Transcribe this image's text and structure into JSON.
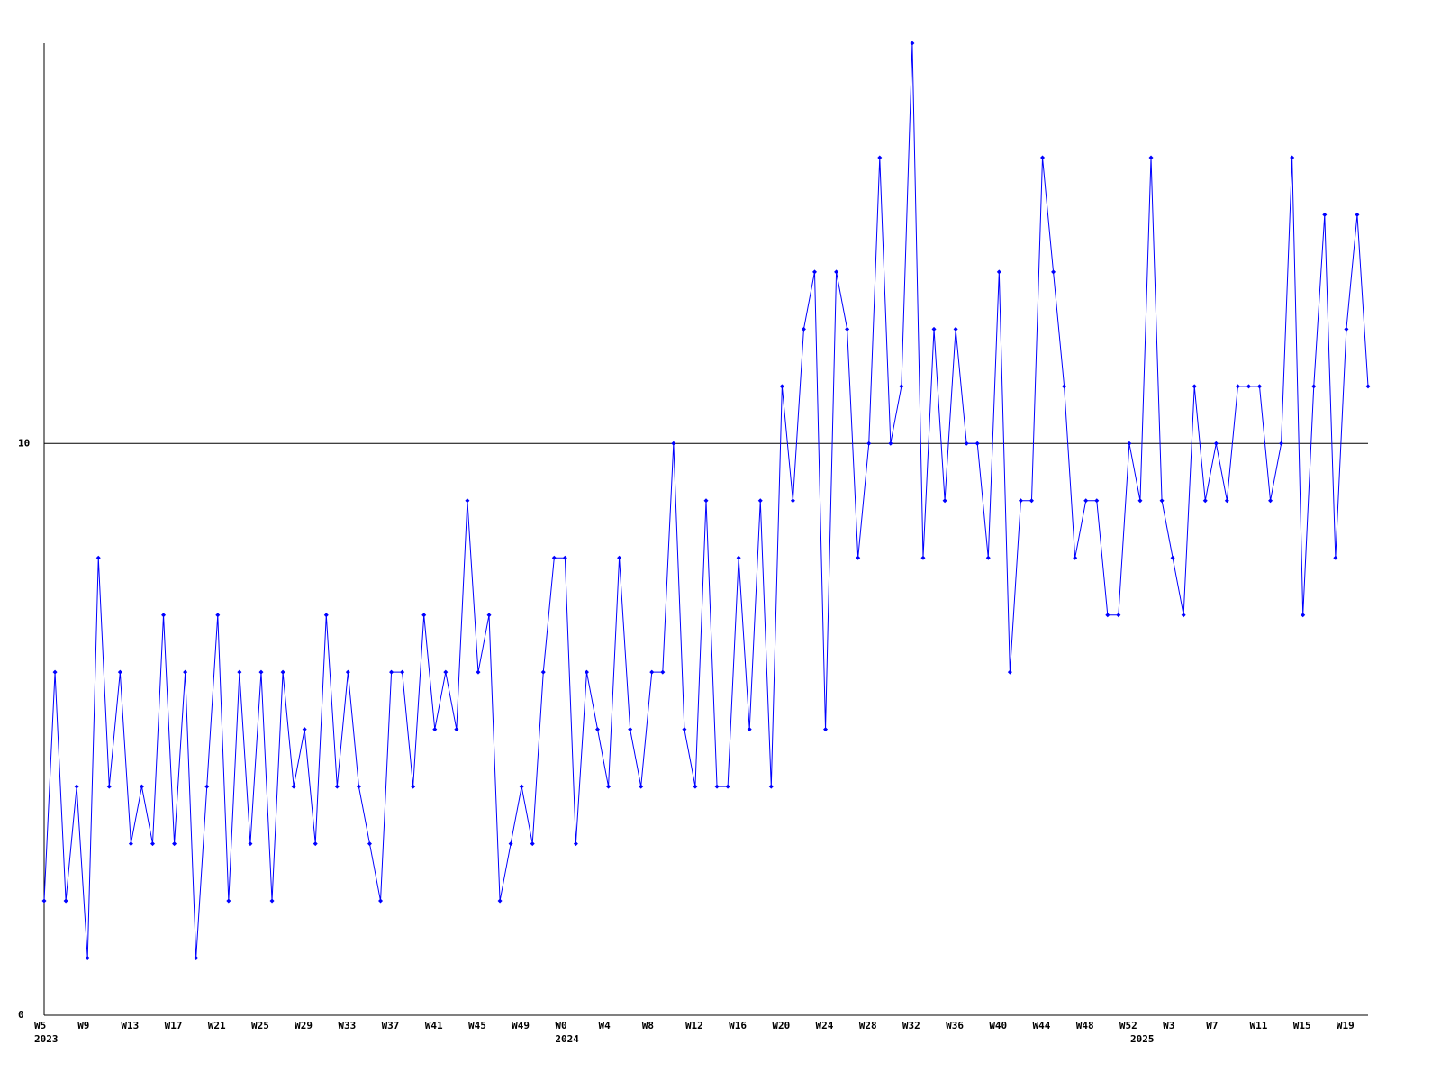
{
  "chart_data": {
    "type": "line",
    "categories": [
      "W5",
      null,
      null,
      null,
      "W9",
      null,
      null,
      null,
      "W13",
      null,
      null,
      null,
      "W17",
      null,
      null,
      null,
      "W21",
      null,
      null,
      null,
      "W25",
      null,
      null,
      null,
      "W29",
      null,
      null,
      null,
      "W33",
      null,
      null,
      null,
      "W37",
      null,
      null,
      null,
      "W41",
      null,
      null,
      null,
      "W45",
      null,
      null,
      null,
      "W49",
      null,
      null,
      null,
      "W0",
      null,
      null,
      null,
      "W4",
      null,
      null,
      null,
      "W8",
      null,
      null,
      null,
      "W12",
      null,
      null,
      null,
      "W16",
      null,
      null,
      null,
      "W20",
      null,
      null,
      null,
      "W24",
      null,
      null,
      null,
      "W28",
      null,
      null,
      null,
      "W32",
      null,
      null,
      null,
      "W36",
      null,
      null,
      null,
      "W40",
      null,
      null,
      null,
      "W44",
      null,
      null,
      null,
      "W48",
      null,
      null,
      null,
      "W52",
      null,
      null,
      null,
      "W3",
      null,
      null,
      null,
      "W7",
      null,
      null,
      null,
      "W11",
      null,
      null,
      null,
      "W15",
      null,
      null,
      null,
      "W19",
      null,
      null
    ],
    "years": [
      "2023",
      null,
      null,
      null,
      null,
      null,
      null,
      null,
      null,
      null,
      null,
      null,
      null,
      null,
      null,
      null,
      null,
      null,
      null,
      null,
      null,
      null,
      null,
      null,
      null,
      null,
      null,
      null,
      null,
      null,
      null,
      null,
      null,
      null,
      null,
      null,
      null,
      null,
      null,
      null,
      null,
      null,
      null,
      null,
      null,
      null,
      null,
      null,
      "2024",
      null,
      null,
      null,
      null,
      null,
      null,
      null,
      null,
      null,
      null,
      null,
      null,
      null,
      null,
      null,
      null,
      null,
      null,
      null,
      null,
      null,
      null,
      null,
      null,
      null,
      null,
      null,
      null,
      null,
      null,
      null,
      null,
      null,
      null,
      null,
      null,
      null,
      null,
      null,
      null,
      null,
      null,
      null,
      null,
      null,
      null,
      null,
      null,
      null,
      null,
      null,
      null,
      "2025",
      null,
      null,
      null,
      null,
      null,
      null,
      null,
      null,
      null,
      null,
      null,
      null,
      null,
      null,
      null,
      null,
      null,
      null,
      null,
      null,
      null
    ],
    "series": [
      {
        "color": "#0000ff",
        "values": [
          2,
          6,
          2,
          4,
          1,
          8,
          4,
          6,
          3,
          4,
          3,
          7,
          3,
          6,
          1,
          4,
          7,
          2,
          6,
          3,
          6,
          2,
          6,
          4,
          5,
          3,
          7,
          4,
          6,
          4,
          3,
          2,
          6,
          6,
          4,
          7,
          5,
          6,
          5,
          9,
          6,
          7,
          2,
          3,
          4,
          3,
          6,
          8,
          8,
          3,
          6,
          5,
          4,
          8,
          5,
          4,
          6,
          6,
          10,
          5,
          4,
          9,
          4,
          4,
          8,
          5,
          9,
          4,
          11,
          9,
          12,
          13,
          5,
          13,
          12,
          8,
          10,
          15,
          10,
          11,
          17,
          8,
          12,
          9,
          12,
          10,
          10,
          8,
          13,
          6,
          9,
          9,
          15,
          13,
          11,
          8,
          9,
          9,
          7,
          7,
          10,
          9,
          15,
          9,
          8,
          7,
          11,
          9,
          10,
          9,
          11,
          11,
          11,
          9,
          10,
          15,
          7,
          11,
          14,
          8,
          12,
          14,
          11
        ]
      }
    ],
    "ylim": [
      0,
      17
    ],
    "yticks": [
      0,
      10
    ],
    "grid": true
  }
}
